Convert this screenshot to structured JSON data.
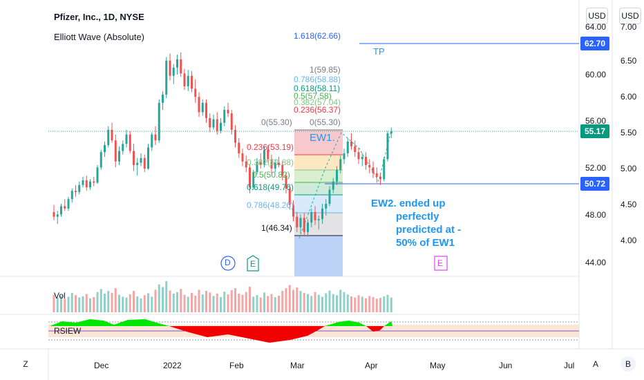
{
  "header": {
    "title": "Pfizer, Inc., 1D, NYSE",
    "study": "Elliott Wave (Absolute)"
  },
  "currency_buttons": [
    "USD",
    "USD"
  ],
  "price_axis": {
    "ticks": [
      "64.00",
      "60.00",
      "56.00",
      "52.00",
      "48.00",
      "44.00"
    ],
    "tag_tp": "62.70",
    "tag_last": "55.17",
    "tag_low": "50.72",
    "tag_colors": {
      "tp": "#2962ff",
      "last": "#089981",
      "low": "#2962ff"
    }
  },
  "secondary_axis": {
    "ticks": [
      "7.00",
      "6.50",
      "6.00",
      "5.50",
      "5.00",
      "4.50",
      "4.00"
    ]
  },
  "time_axis": {
    "labels": [
      "Dec",
      "2022",
      "Feb",
      "Mar",
      "Apr",
      "May",
      "Jun",
      "Jul"
    ]
  },
  "fib_labels": {
    "ext_1618": "1.618(62.66)",
    "tp": "TP",
    "r1": "1(59.85)",
    "r0786": "0.786(58.88)",
    "r0618": "0.618(58.11)",
    "r05": "0.5(57.58)",
    "r0382": "0.382(57.04)",
    "r0236": "0.236(56.37)",
    "r0_right": "0(55.30)",
    "r0_left": "0(55.30)",
    "l0236": "0.236(53.19)",
    "l0382": "0.382(51.88)",
    "l05": "0.5(50.82)",
    "l0618": "0.618(49.76)",
    "l0786": "0.786(48.26)",
    "l1": "1(46.34)",
    "ew1": "EW1."
  },
  "annotation": {
    "line1": "EW2. ended up",
    "line2": "perfectly",
    "line3": "predicted at -",
    "line4": "50% of EW1"
  },
  "markers": {
    "d": "D",
    "e1": "E",
    "e2": "E"
  },
  "volume_label": "Vol",
  "rsi_label": "RSIEW",
  "corner_buttons": {
    "left": "Z",
    "a": "A",
    "b": "B"
  },
  "colors": {
    "up": "#26a69a",
    "down": "#ef5350",
    "fib_blue": "#2196f3",
    "fib_red": "#f23645",
    "fib_green": "#4caf50",
    "fib_teal": "#089981"
  },
  "chart_data": {
    "type": "candlestick",
    "title": "Pfizer, Inc., 1D, NYSE",
    "ylim": [
      43,
      65
    ],
    "x_labels": [
      "Dec",
      "2022",
      "Feb",
      "Mar",
      "Apr",
      "May",
      "Jun",
      "Jul"
    ],
    "candles": [
      [
        48.3,
        48.9,
        47.6,
        47.9
      ],
      [
        47.9,
        48.4,
        47.3,
        48.1
      ],
      [
        48.1,
        49.0,
        47.9,
        48.8
      ],
      [
        48.8,
        49.4,
        48.4,
        48.6
      ],
      [
        48.6,
        49.6,
        48.4,
        49.4
      ],
      [
        49.4,
        50.3,
        49.1,
        50.1
      ],
      [
        50.1,
        50.6,
        49.6,
        50.0
      ],
      [
        50.0,
        50.9,
        49.8,
        50.6
      ],
      [
        50.6,
        51.3,
        50.4,
        51.0
      ],
      [
        51.0,
        51.4,
        50.1,
        50.4
      ],
      [
        50.4,
        51.1,
        50.2,
        50.9
      ],
      [
        50.9,
        51.3,
        50.5,
        50.8
      ],
      [
        50.8,
        52.3,
        50.7,
        52.1
      ],
      [
        52.1,
        53.6,
        51.9,
        53.4
      ],
      [
        53.4,
        54.3,
        53.0,
        54.0
      ],
      [
        54.0,
        55.6,
        53.8,
        55.3
      ],
      [
        55.3,
        55.9,
        54.2,
        54.4
      ],
      [
        54.4,
        54.9,
        52.1,
        52.6
      ],
      [
        52.6,
        53.9,
        52.3,
        53.5
      ],
      [
        53.5,
        54.4,
        53.2,
        54.1
      ],
      [
        54.1,
        55.3,
        53.8,
        54.9
      ],
      [
        54.9,
        55.2,
        53.3,
        53.5
      ],
      [
        53.5,
        54.1,
        51.8,
        52.3
      ],
      [
        52.3,
        52.9,
        51.4,
        52.5
      ],
      [
        52.5,
        53.3,
        52.2,
        52.9
      ],
      [
        52.9,
        53.2,
        51.7,
        52.0
      ],
      [
        52.0,
        54.1,
        51.9,
        53.8
      ],
      [
        53.8,
        55.1,
        53.5,
        54.9
      ],
      [
        54.9,
        55.6,
        54.0,
        54.4
      ],
      [
        54.4,
        57.9,
        54.2,
        57.6
      ],
      [
        57.6,
        58.6,
        57.0,
        58.3
      ],
      [
        58.3,
        61.5,
        58.0,
        61.2
      ],
      [
        61.2,
        61.8,
        59.5,
        59.9
      ],
      [
        59.9,
        60.9,
        59.2,
        60.6
      ],
      [
        60.6,
        61.7,
        60.0,
        61.3
      ],
      [
        61.3,
        61.9,
        59.8,
        60.1
      ],
      [
        60.1,
        60.5,
        58.7,
        59.0
      ],
      [
        59.0,
        60.4,
        58.6,
        59.9
      ],
      [
        59.9,
        60.3,
        58.5,
        58.8
      ],
      [
        58.8,
        59.6,
        57.6,
        58.1
      ],
      [
        58.1,
        58.5,
        56.4,
        56.8
      ],
      [
        56.8,
        57.9,
        56.5,
        57.6
      ],
      [
        57.6,
        57.9,
        55.9,
        56.3
      ],
      [
        56.3,
        56.7,
        55.1,
        55.5
      ],
      [
        55.5,
        56.6,
        55.3,
        56.2
      ],
      [
        56.2,
        56.8,
        54.9,
        55.2
      ],
      [
        55.2,
        56.3,
        55.0,
        55.9
      ],
      [
        55.9,
        57.3,
        55.6,
        57.0
      ],
      [
        57.0,
        57.6,
        56.4,
        56.7
      ],
      [
        56.7,
        57.0,
        54.9,
        55.3
      ],
      [
        55.3,
        55.7,
        53.8,
        54.2
      ],
      [
        54.2,
        54.6,
        52.9,
        53.3
      ],
      [
        53.3,
        53.7,
        52.2,
        52.6
      ],
      [
        52.6,
        53.1,
        51.7,
        52.1
      ],
      [
        52.1,
        52.4,
        49.9,
        50.4
      ],
      [
        50.4,
        51.9,
        50.2,
        51.7
      ],
      [
        51.7,
        52.9,
        51.5,
        52.6
      ],
      [
        52.6,
        53.3,
        52.0,
        52.3
      ],
      [
        52.3,
        53.9,
        52.1,
        53.6
      ],
      [
        53.6,
        54.0,
        52.5,
        52.8
      ],
      [
        52.8,
        53.2,
        51.6,
        52.0
      ],
      [
        52.0,
        52.8,
        51.7,
        52.5
      ],
      [
        52.5,
        53.0,
        52.1,
        52.3
      ],
      [
        52.3,
        52.6,
        51.0,
        51.4
      ],
      [
        51.4,
        51.7,
        49.9,
        50.3
      ],
      [
        50.3,
        50.6,
        48.5,
        48.9
      ],
      [
        48.9,
        49.3,
        47.5,
        47.9
      ],
      [
        47.9,
        48.3,
        46.6,
        47.0
      ],
      [
        47.0,
        48.1,
        46.5,
        47.8
      ],
      [
        47.8,
        48.2,
        46.3,
        46.6
      ],
      [
        46.6,
        47.7,
        46.2,
        47.4
      ],
      [
        47.4,
        48.6,
        47.0,
        48.3
      ],
      [
        48.3,
        48.8,
        47.2,
        47.6
      ],
      [
        47.6,
        48.0,
        46.8,
        47.7
      ],
      [
        47.7,
        49.0,
        47.3,
        48.6
      ],
      [
        48.6,
        49.4,
        48.0,
        49.0
      ],
      [
        49.0,
        50.5,
        48.8,
        50.2
      ],
      [
        50.2,
        51.2,
        49.9,
        50.9
      ],
      [
        50.9,
        52.2,
        50.6,
        51.9
      ],
      [
        51.9,
        53.1,
        51.6,
        52.8
      ],
      [
        52.8,
        53.7,
        52.4,
        53.3
      ],
      [
        53.3,
        54.6,
        53.0,
        54.3
      ],
      [
        54.3,
        55.0,
        53.6,
        53.9
      ],
      [
        53.9,
        54.4,
        53.0,
        53.4
      ],
      [
        53.4,
        53.8,
        52.4,
        52.8
      ],
      [
        52.8,
        53.3,
        52.2,
        53.0
      ],
      [
        53.0,
        53.4,
        51.9,
        52.3
      ],
      [
        52.3,
        52.8,
        51.6,
        52.1
      ],
      [
        52.1,
        52.6,
        51.2,
        51.6
      ],
      [
        51.6,
        52.1,
        50.8,
        51.3
      ],
      [
        51.3,
        51.6,
        50.6,
        51.1
      ],
      [
        51.1,
        53.0,
        50.9,
        52.8
      ],
      [
        52.8,
        55.2,
        52.6,
        55.0
      ],
      [
        55.0,
        55.5,
        54.6,
        55.17
      ]
    ],
    "volume": [
      45,
      38,
      42,
      35,
      40,
      50,
      44,
      38,
      41,
      47,
      36,
      39,
      52,
      60,
      48,
      55,
      50,
      62,
      45,
      40,
      38,
      46,
      55,
      41,
      36,
      44,
      49,
      40,
      58,
      72,
      65,
      80,
      56,
      48,
      52,
      60,
      45,
      40,
      50,
      43,
      58,
      46,
      55,
      51,
      42,
      48,
      39,
      53,
      46,
      57,
      62,
      48,
      45,
      52,
      66,
      40,
      44,
      38,
      51,
      42,
      47,
      39,
      43,
      55,
      62,
      70,
      58,
      64,
      55,
      50,
      47,
      42,
      52,
      45,
      40,
      49,
      56,
      47,
      44,
      58,
      52,
      46,
      41,
      38,
      44,
      40,
      36,
      42,
      39,
      35,
      37,
      41,
      45,
      38
    ],
    "fib_retracement_ew1": {
      "0": 55.3,
      "0.236": 53.19,
      "0.382": 51.88,
      "0.5": 50.82,
      "0.618": 49.76,
      "0.786": 48.26,
      "1": 46.34
    },
    "fib_extension": {
      "0": 55.3,
      "0.236": 56.37,
      "0.382": 57.04,
      "0.5": 57.58,
      "0.618": 58.11,
      "0.786": 58.88,
      "1": 59.85,
      "1.618": 62.66
    },
    "levels": {
      "tp": 62.7,
      "last": 55.17,
      "ew2_low": 50.72
    }
  }
}
